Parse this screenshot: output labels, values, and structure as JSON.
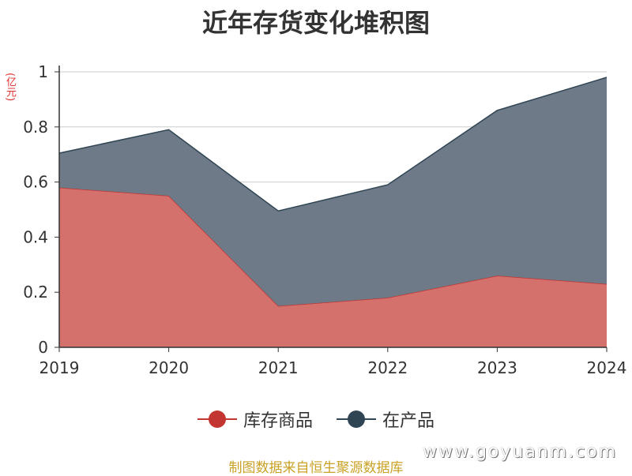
{
  "chart_data": {
    "type": "area",
    "stacked": true,
    "title": "近年存货变化堆积图",
    "unit_label": "(亿元)",
    "categories": [
      "2019",
      "2020",
      "2021",
      "2022",
      "2023",
      "2024"
    ],
    "series": [
      {
        "name": "库存商品",
        "values": [
          0.58,
          0.55,
          0.15,
          0.18,
          0.26,
          0.23
        ],
        "color": "#c23531",
        "fill": "#d4716d"
      },
      {
        "name": "在产品",
        "values": [
          0.125,
          0.24,
          0.345,
          0.41,
          0.6,
          0.75
        ],
        "color": "#2f4554",
        "fill": "#6e7a87"
      }
    ],
    "ylim": [
      0,
      1
    ],
    "yticks": [
      "0",
      "0.2",
      "0.4",
      "0.6",
      "0.8",
      "1"
    ],
    "grid": true,
    "legend_position": "bottom"
  },
  "source_note": "制图数据来自恒生聚源数据库",
  "watermark": "www.goyuanm.com"
}
